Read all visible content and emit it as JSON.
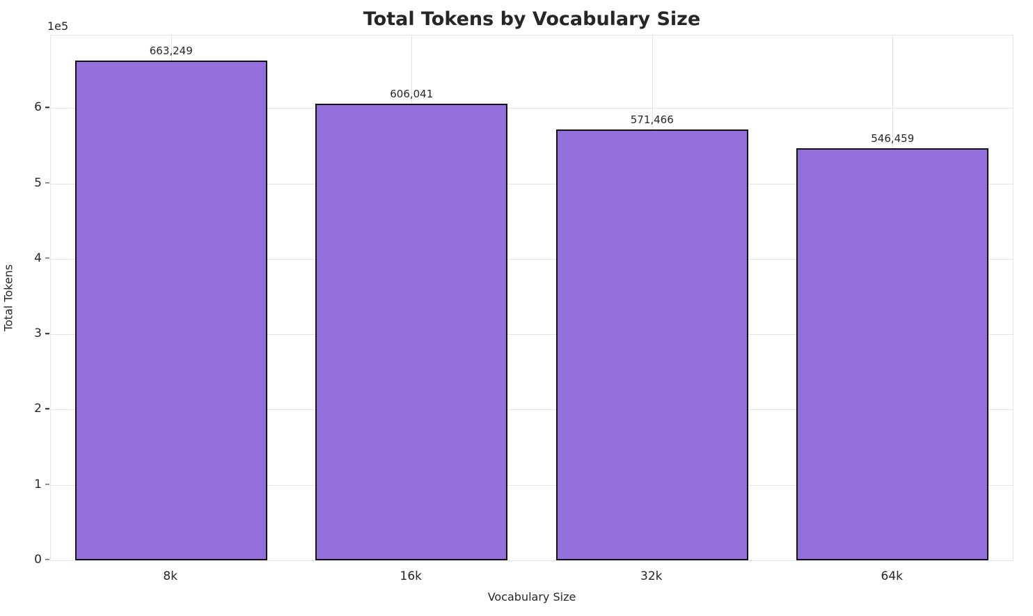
{
  "chart_data": {
    "type": "bar",
    "title": "Total Tokens by Vocabulary Size",
    "xlabel": "Vocabulary Size",
    "ylabel": "Total Tokens",
    "offset_text": "1e5",
    "categories": [
      "8k",
      "16k",
      "32k",
      "64k"
    ],
    "values": [
      663249,
      606041,
      571466,
      546459
    ],
    "value_labels": [
      "663,249",
      "606,041",
      "571,466",
      "546,459"
    ],
    "ylim": [
      0,
      696411
    ],
    "yticks": [
      0,
      100000,
      200000,
      300000,
      400000,
      500000,
      600000
    ],
    "ytick_labels": [
      "0",
      "1",
      "2",
      "3",
      "4",
      "5",
      "6"
    ],
    "bar_width_fraction": 0.8,
    "grid": true,
    "legend": null,
    "colors": {
      "bar_fill": "#9370DB",
      "bar_edge": "#111111",
      "grid": "#e3e3e3",
      "text": "#262626",
      "background": "#ffffff"
    }
  }
}
